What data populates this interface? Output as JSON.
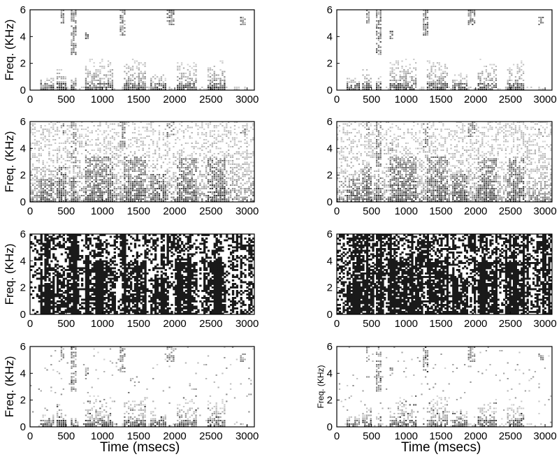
{
  "chart_data": [
    {
      "id": "panel-1",
      "type": "heatmap",
      "ylabel": "Freq. (KHz)",
      "xlabel": "",
      "xlim": [
        0,
        3100
      ],
      "ylim": [
        0,
        6
      ],
      "xticks": [
        "0",
        "500",
        "1000",
        "1500",
        "2000",
        "2500",
        "3000"
      ],
      "yticks": [
        "0",
        "2",
        "4",
        "6"
      ],
      "x": [
        0,
        500,
        1000,
        1500,
        2000,
        2500,
        3000
      ],
      "y": [
        0,
        2,
        4,
        6
      ],
      "style": "clean"
    },
    {
      "id": "panel-2",
      "type": "heatmap",
      "ylabel": "",
      "xlabel": "",
      "xlim": [
        0,
        3100
      ],
      "ylim": [
        0,
        6
      ],
      "xticks": [
        "0",
        "500",
        "1000",
        "1500",
        "2000",
        "2500",
        "3000"
      ],
      "yticks": [
        "0",
        "2",
        "4",
        "6"
      ],
      "x": [
        0,
        500,
        1000,
        1500,
        2000,
        2500,
        3000
      ],
      "y": [
        0,
        2,
        4,
        6
      ],
      "style": "clean"
    },
    {
      "id": "panel-3",
      "type": "heatmap",
      "ylabel": "Freq. (KHz)",
      "xlabel": "",
      "xlim": [
        0,
        3100
      ],
      "ylim": [
        0,
        6
      ],
      "xticks": [
        "0",
        "500",
        "1000",
        "1500",
        "2000",
        "2500",
        "3000"
      ],
      "yticks": [
        "0",
        "2",
        "4",
        "6"
      ],
      "x": [
        0,
        500,
        1000,
        1500,
        2000,
        2500,
        3000
      ],
      "y": [
        0,
        2,
        4,
        6
      ],
      "style": "noisy"
    },
    {
      "id": "panel-4",
      "type": "heatmap",
      "ylabel": "",
      "xlabel": "",
      "xlim": [
        0,
        3100
      ],
      "ylim": [
        0,
        6
      ],
      "xticks": [
        "0",
        "500",
        "1000",
        "1500",
        "2000",
        "2500",
        "3000"
      ],
      "yticks": [
        "0",
        "2",
        "4",
        "6"
      ],
      "x": [
        0,
        500,
        1000,
        1500,
        2000,
        2500,
        3000
      ],
      "y": [
        0,
        2,
        4,
        6
      ],
      "style": "noisy"
    },
    {
      "id": "panel-5",
      "type": "heatmap",
      "ylabel": "Freq. (KHz)",
      "xlabel": "",
      "xlim": [
        0,
        3100
      ],
      "ylim": [
        0,
        6
      ],
      "xticks": [
        "0",
        "500",
        "1000",
        "1500",
        "2000",
        "2500",
        "3000"
      ],
      "yticks": [
        "0",
        "2",
        "4",
        "6"
      ],
      "x": [
        0,
        500,
        1000,
        1500,
        2000,
        2500,
        3000
      ],
      "y": [
        0,
        2,
        4,
        6
      ],
      "style": "mask"
    },
    {
      "id": "panel-6",
      "type": "heatmap",
      "ylabel": "",
      "xlabel": "",
      "xlim": [
        0,
        3100
      ],
      "ylim": [
        0,
        6
      ],
      "xticks": [
        "0",
        "500",
        "1000",
        "1500",
        "2000",
        "2500",
        "3000"
      ],
      "yticks": [
        "0",
        "2",
        "4",
        "6"
      ],
      "x": [
        0,
        500,
        1000,
        1500,
        2000,
        2500,
        3000
      ],
      "y": [
        0,
        2,
        4,
        6
      ],
      "style": "mask-dense"
    },
    {
      "id": "panel-7",
      "type": "heatmap",
      "ylabel": "Freq. (KHz)",
      "xlabel": "Time (msecs)",
      "xlim": [
        0,
        3100
      ],
      "ylim": [
        0,
        6
      ],
      "xticks": [
        "0",
        "500",
        "1000",
        "1500",
        "2000",
        "2500",
        "3000"
      ],
      "yticks": [
        "0",
        "2",
        "4",
        "6"
      ],
      "x": [
        0,
        500,
        1000,
        1500,
        2000,
        2500,
        3000
      ],
      "y": [
        0,
        2,
        4,
        6
      ],
      "style": "restored"
    },
    {
      "id": "panel-8",
      "type": "heatmap",
      "ylabel": "Freq. (KHz)",
      "xlabel": "Time (msecs)",
      "xlim": [
        0,
        3100
      ],
      "ylim": [
        0,
        6
      ],
      "xticks": [
        "0",
        "500",
        "1000",
        "1500",
        "2000",
        "2500",
        "3000"
      ],
      "yticks": [
        "0",
        "2",
        "4",
        "6"
      ],
      "x": [
        0,
        500,
        1000,
        1500,
        2000,
        2500,
        3000
      ],
      "y": [
        0,
        2,
        4,
        6
      ],
      "style": "restored"
    }
  ],
  "colors": {
    "ink": "#1a1a1a",
    "axis": "#000000",
    "background": "#ffffff"
  }
}
